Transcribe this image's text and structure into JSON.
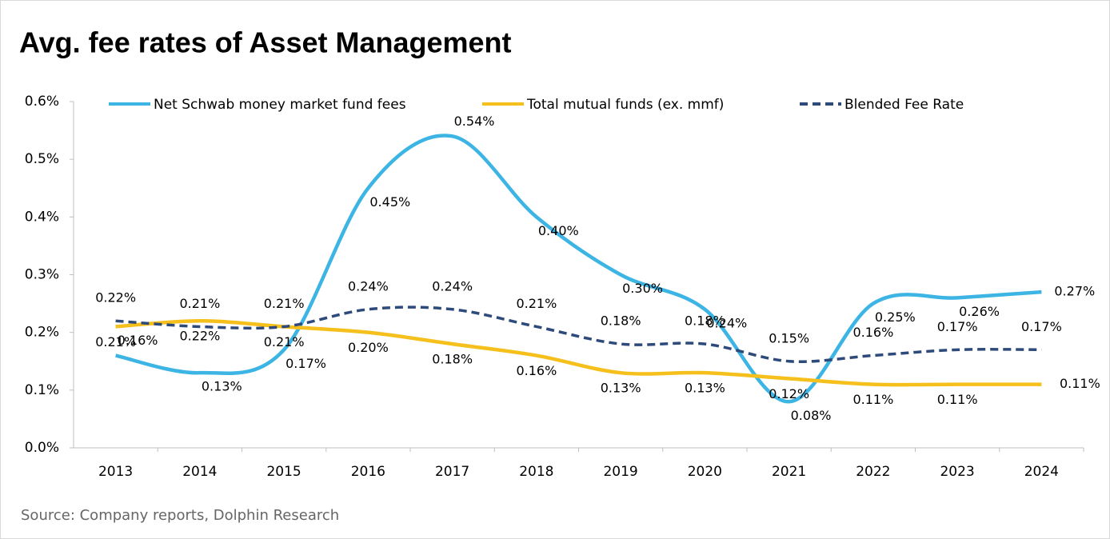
{
  "chart_data": {
    "type": "line",
    "title": "Avg. fee rates of Asset Management",
    "source": "Source: Company reports, Dolphin Research",
    "categories": [
      "2013",
      "2014",
      "2015",
      "2016",
      "2017",
      "2018",
      "2019",
      "2020",
      "2021",
      "2022",
      "2023",
      "2024"
    ],
    "series": [
      {
        "name": "Net Schwab money market fund fees",
        "color": "#3cb4e4",
        "dash": false,
        "label_color": "#000000",
        "values": [
          0.16,
          0.13,
          0.17,
          0.45,
          0.54,
          0.4,
          0.3,
          0.24,
          0.08,
          0.25,
          0.26,
          0.27
        ],
        "value_labels": [
          "0.16%",
          "0.13%",
          "0.17%",
          "0.45%",
          "0.54%",
          "0.40%",
          "0.30%",
          "0.24%",
          "0.08%",
          "0.25%",
          "0.26%",
          "0.27%"
        ]
      },
      {
        "name": "Total mutual funds  (ex. mmf)",
        "color": "#f5bf1c",
        "dash": false,
        "label_color": "#000000",
        "values": [
          0.21,
          0.22,
          0.21,
          0.2,
          0.18,
          0.16,
          0.13,
          0.13,
          0.12,
          0.11,
          0.11,
          0.11
        ],
        "value_labels": [
          "0.21%",
          "0.22%",
          "0.21%",
          "0.20%",
          "0.18%",
          "0.16%",
          "0.13%",
          "0.13%",
          "0.12%",
          "0.11%",
          "0.11%",
          "0.11%"
        ]
      },
      {
        "name": "Blended Fee Rate",
        "color": "#2e4a7b",
        "dash": true,
        "label_color": "#d42a2a",
        "values": [
          0.22,
          0.21,
          0.21,
          0.24,
          0.24,
          0.21,
          0.18,
          0.18,
          0.15,
          0.16,
          0.17,
          0.17
        ],
        "value_labels": [
          "0.22%",
          "0.21%",
          "0.21%",
          "0.24%",
          "0.24%",
          "0.21%",
          "0.18%",
          "0.18%",
          "0.15%",
          "0.16%",
          "0.17%",
          "0.17%"
        ]
      }
    ],
    "ylim": [
      0,
      0.6
    ],
    "yticks": [
      {
        "value": 0,
        "label": "0.0%"
      },
      {
        "value": 0.1,
        "label": "0.1%"
      },
      {
        "value": 0.2,
        "label": "0.2%"
      },
      {
        "value": 0.3,
        "label": "0.3%"
      },
      {
        "value": 0.4,
        "label": "0.4%"
      },
      {
        "value": 0.5,
        "label": "0.5%"
      },
      {
        "value": 0.6,
        "label": "0.6%"
      }
    ],
    "grid": false,
    "legend": "top"
  }
}
